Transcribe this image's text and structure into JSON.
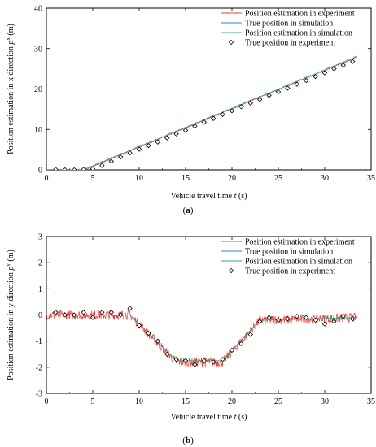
{
  "chart_data": [
    {
      "type": "line",
      "panel_label": "(a)",
      "xlabel_prefix": "Vehicle travel time ",
      "xlabel_var": "t",
      "xlabel_unit": " (s)",
      "ylabel_prefix": "Position estimation in x direction ",
      "ylabel_var": "p",
      "ylabel_sup": "x",
      "ylabel_unit": " (m)",
      "xlim": [
        0,
        35
      ],
      "ylim": [
        0,
        40
      ],
      "xticks": [
        "0",
        "5",
        "10",
        "15",
        "20",
        "25",
        "30",
        "35"
      ],
      "yticks": [
        "0",
        "10",
        "20",
        "30",
        "40"
      ],
      "legend": [
        {
          "name": "Position estimation in experiment",
          "color": "#e8413c",
          "kind": "line"
        },
        {
          "name": "True position in simulation",
          "color": "#2c7fc8",
          "kind": "line"
        },
        {
          "name": "Position estimation in simulation",
          "color": "#2eb872",
          "kind": "line"
        },
        {
          "name": "True position in experiment",
          "color": "#000000",
          "kind": "marker"
        }
      ],
      "series": [
        {
          "name": "Position estimation in experiment",
          "x": [
            0,
            4,
            33.5
          ],
          "y": [
            0,
            0,
            28
          ]
        },
        {
          "name": "True position in simulation",
          "x": [
            0,
            4,
            33.5
          ],
          "y": [
            0,
            0,
            28
          ]
        },
        {
          "name": "Position estimation in simulation",
          "x": [
            0,
            4,
            33.5
          ],
          "y": [
            0,
            0,
            28
          ]
        },
        {
          "name": "True position in experiment",
          "x": [
            1,
            2,
            3,
            4,
            5,
            6,
            7,
            8,
            9,
            10,
            11,
            12,
            13,
            14,
            15,
            16,
            17,
            18,
            19,
            20,
            21,
            22,
            23,
            24,
            25,
            26,
            27,
            28,
            29,
            30,
            31,
            32,
            33
          ],
          "y": [
            0.1,
            0,
            0,
            0.1,
            0.3,
            1.1,
            2.1,
            3.2,
            4.2,
            5.1,
            6.0,
            6.9,
            7.9,
            8.9,
            9.8,
            10.8,
            11.8,
            12.7,
            13.7,
            14.6,
            15.6,
            16.5,
            17.4,
            18.4,
            19.3,
            20.2,
            21.2,
            22.1,
            23.1,
            24.0,
            25.0,
            25.9,
            26.8
          ]
        }
      ]
    },
    {
      "type": "line",
      "panel_label": "(b)",
      "xlabel_prefix": "Vehicle travel time ",
      "xlabel_var": "t",
      "xlabel_unit": " (s)",
      "ylabel_prefix": "Position estimation in y direction ",
      "ylabel_var": "p",
      "ylabel_sup": "y",
      "ylabel_unit": " (m)",
      "xlim": [
        0,
        35
      ],
      "ylim": [
        -3,
        3
      ],
      "xticks": [
        "0",
        "5",
        "10",
        "15",
        "20",
        "25",
        "30",
        "35"
      ],
      "yticks": [
        "-3",
        "-2",
        "-1",
        "0",
        "1",
        "2",
        "3"
      ],
      "legend": [
        {
          "name": "Position estimation in experiment",
          "color": "#e8413c",
          "kind": "line"
        },
        {
          "name": "True position in simulation",
          "color": "#2c7fc8",
          "kind": "line"
        },
        {
          "name": "Position estimation in simulation",
          "color": "#2eb872",
          "kind": "line"
        },
        {
          "name": "True position in experiment",
          "color": "#000000",
          "kind": "marker"
        }
      ],
      "series": [
        {
          "name": "Position estimation in experiment",
          "x": [
            0,
            9,
            14,
            19,
            23,
            33.5
          ],
          "y": [
            0,
            0,
            -1.8,
            -1.8,
            -0.2,
            -0.1
          ]
        },
        {
          "name": "True position in simulation",
          "x": [
            0,
            9,
            14,
            19,
            23,
            33.5
          ],
          "y": [
            0,
            0,
            -1.75,
            -1.75,
            -0.2,
            -0.1
          ]
        },
        {
          "name": "Position estimation in simulation",
          "x": [
            0,
            9,
            14,
            19,
            23,
            33.5
          ],
          "y": [
            0,
            0,
            -1.75,
            -1.75,
            -0.2,
            -0.1
          ]
        },
        {
          "name": "True position in experiment",
          "x": [
            1,
            2,
            3,
            4,
            5,
            6,
            7,
            8,
            9,
            10,
            11,
            12,
            13,
            14,
            15,
            16,
            17,
            18,
            19,
            20,
            21,
            22,
            23,
            24,
            25,
            26,
            27,
            28,
            29,
            30,
            31,
            32,
            33
          ],
          "y": [
            0.1,
            0,
            0,
            0.1,
            -0.1,
            0.1,
            0.1,
            0,
            0.25,
            -0.4,
            -0.7,
            -1.0,
            -1.5,
            -1.7,
            -1.75,
            -1.9,
            -1.75,
            -1.8,
            -1.7,
            -1.35,
            -1.1,
            -0.75,
            -0.25,
            -0.1,
            -0.2,
            -0.15,
            -0.05,
            -0.1,
            -0.2,
            -0.35,
            -0.25,
            -0.05,
            -0.15
          ]
        }
      ]
    }
  ]
}
